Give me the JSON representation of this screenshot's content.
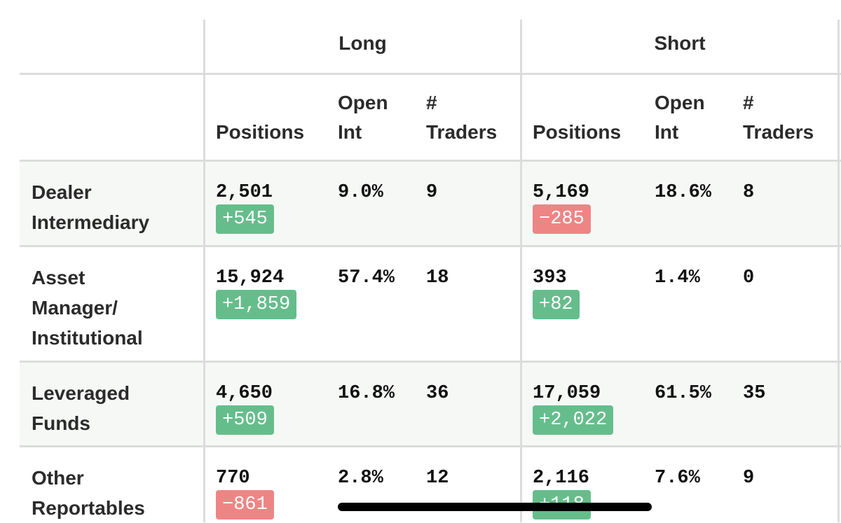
{
  "table": {
    "group_headers": [
      "Long",
      "Short"
    ],
    "column_headers": [
      "Positions",
      "Open Int",
      "# Traders"
    ],
    "rows": [
      {
        "label": "Dealer Intermediary",
        "long": {
          "positions": "2,501",
          "change": "+545",
          "open_int": "9.0%",
          "traders": "9"
        },
        "short": {
          "positions": "5,169",
          "change": "−285",
          "open_int": "18.6%",
          "traders": "8"
        }
      },
      {
        "label": "Asset Manager/ Institutional",
        "long": {
          "positions": "15,924",
          "change": "+1,859",
          "open_int": "57.4%",
          "traders": "18"
        },
        "short": {
          "positions": "393",
          "change": "+82",
          "open_int": "1.4%",
          "traders": "0"
        }
      },
      {
        "label": "Leveraged Funds",
        "long": {
          "positions": "4,650",
          "change": "+509",
          "open_int": "16.8%",
          "traders": "36"
        },
        "short": {
          "positions": "17,059",
          "change": "+2,022",
          "open_int": "61.5%",
          "traders": "35"
        }
      },
      {
        "label": "Other Reportables",
        "long": {
          "positions": "770",
          "change": "−861",
          "open_int": "2.8%",
          "traders": "12"
        },
        "short": {
          "positions": "2,116",
          "change": "+118",
          "open_int": "7.6%",
          "traders": "9"
        }
      }
    ]
  }
}
